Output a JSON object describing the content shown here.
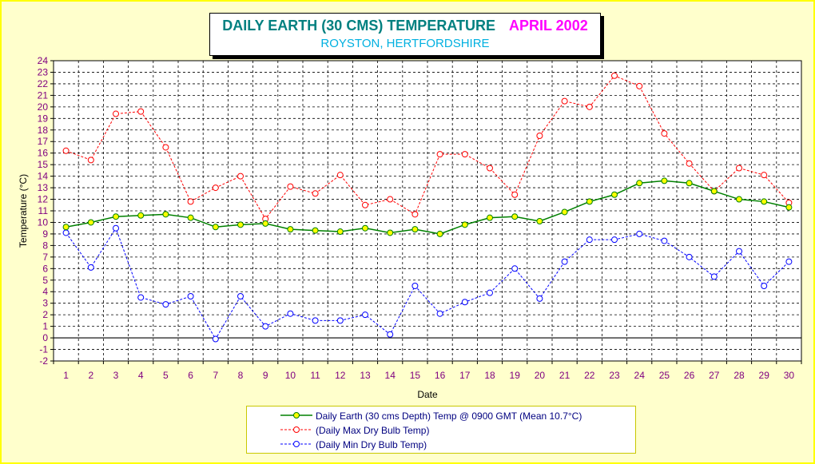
{
  "header": {
    "title": "DAILY EARTH (30 CMS) TEMPERATURE",
    "period": "APRIL 2002",
    "location": "ROYSTON, HERTFORDSHIRE"
  },
  "chart_data": {
    "type": "line",
    "title": "DAILY EARTH (30 CMS) TEMPERATURE APRIL 2002",
    "subtitle": "ROYSTON, HERTFORDSHIRE",
    "xlabel": "Date",
    "ylabel": "Temperature (°C)",
    "ylim": [
      -2,
      24
    ],
    "y_ticks": [
      -2,
      -1,
      0,
      1,
      2,
      3,
      4,
      5,
      6,
      7,
      8,
      9,
      10,
      11,
      12,
      13,
      14,
      15,
      16,
      17,
      18,
      19,
      20,
      21,
      22,
      23,
      24
    ],
    "x": [
      1,
      2,
      3,
      4,
      5,
      6,
      7,
      8,
      9,
      10,
      11,
      12,
      13,
      14,
      15,
      16,
      17,
      18,
      19,
      20,
      21,
      22,
      23,
      24,
      25,
      26,
      27,
      28,
      29,
      30
    ],
    "grid": true,
    "legend_position": "bottom",
    "series": [
      {
        "name": "Daily Earth (30 cms Depth) Temp @ 0900 GMT (Mean 10.7°C)",
        "color": "#008000",
        "marker_fill": "#ffff00",
        "line_style": "solid",
        "values": [
          9.6,
          10.0,
          10.5,
          10.6,
          10.7,
          10.4,
          9.6,
          9.8,
          9.9,
          9.4,
          9.3,
          9.2,
          9.5,
          9.1,
          9.4,
          9.0,
          9.8,
          10.4,
          10.5,
          10.1,
          10.9,
          11.8,
          12.4,
          13.4,
          13.6,
          13.4,
          12.7,
          12.0,
          11.8,
          11.3
        ]
      },
      {
        "name": "(Daily Max Dry Bulb Temp)",
        "color": "#ff0000",
        "marker_fill": "none",
        "line_style": "dashed",
        "values": [
          16.2,
          15.4,
          19.4,
          19.6,
          16.5,
          11.8,
          13.0,
          14.0,
          10.3,
          13.1,
          12.5,
          14.1,
          11.5,
          12.0,
          10.7,
          15.9,
          15.9,
          14.7,
          12.4,
          17.5,
          20.5,
          20.0,
          22.7,
          21.8,
          17.7,
          15.1,
          12.7,
          14.7,
          14.1,
          11.7
        ]
      },
      {
        "name": "(Daily Min Dry Bulb Temp)",
        "color": "#0000ff",
        "marker_fill": "none",
        "line_style": "dashed",
        "values": [
          9.1,
          6.1,
          9.5,
          3.5,
          2.9,
          3.6,
          -0.1,
          3.6,
          1.0,
          2.1,
          1.5,
          1.5,
          2.0,
          0.3,
          4.5,
          2.1,
          3.1,
          3.9,
          6.0,
          3.4,
          6.6,
          8.5,
          8.5,
          9.0,
          8.4,
          7.0,
          5.3,
          7.5,
          4.5,
          6.6
        ]
      }
    ]
  }
}
